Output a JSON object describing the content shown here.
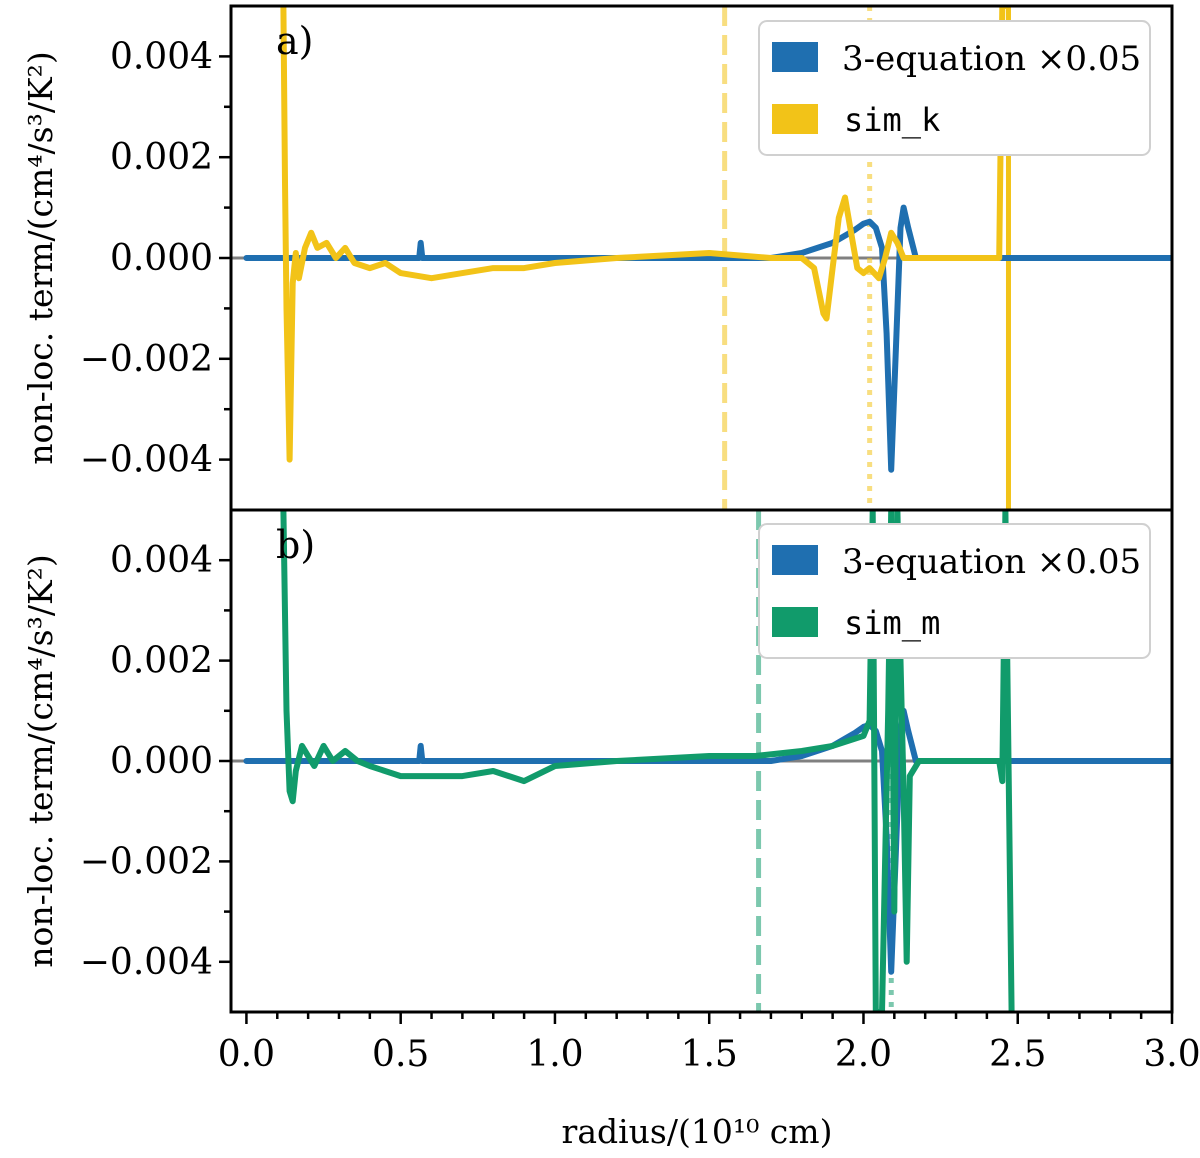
{
  "chart_data": [
    {
      "type": "line",
      "panel_label": "a)",
      "ylabel": "non-loc. term/(cm⁴/s³/K²)",
      "ylim": [
        -0.005,
        0.005
      ],
      "yticks": [
        0.004,
        0.002,
        0.0,
        -0.002,
        -0.004
      ],
      "ytick_labels": [
        "0.004",
        "0.002",
        "0.000",
        "−0.002",
        "−0.004"
      ],
      "xlim": [
        -0.05,
        3.0
      ],
      "legend_position": "top-right",
      "zero_line_color": "#808080",
      "series": [
        {
          "name": "3-equation ×0.05",
          "legend_style": "serif",
          "color": "#1f6fb0",
          "points": [
            [
              0.0,
              0.0
            ],
            [
              0.56,
              0.0
            ],
            [
              0.565,
              0.0003
            ],
            [
              0.57,
              0.0
            ],
            [
              1.7,
              0.0
            ],
            [
              1.8,
              0.0001
            ],
            [
              1.9,
              0.0003
            ],
            [
              1.97,
              0.00055
            ],
            [
              2.0,
              0.00068
            ],
            [
              2.02,
              0.00072
            ],
            [
              2.04,
              0.0006
            ],
            [
              2.06,
              0.0002
            ],
            [
              2.075,
              -0.0015
            ],
            [
              2.09,
              -0.0042
            ],
            [
              2.105,
              -0.0018
            ],
            [
              2.12,
              0.0006
            ],
            [
              2.13,
              0.001
            ],
            [
              2.145,
              0.0006
            ],
            [
              2.17,
              0.0
            ],
            [
              3.0,
              0.0
            ]
          ]
        },
        {
          "name": "sim_k",
          "legend_style": "mono",
          "color": "#f2c318",
          "points": [
            [
              0.12,
              0.005
            ],
            [
              0.125,
              0.0015
            ],
            [
              0.13,
              -0.001
            ],
            [
              0.14,
              -0.004
            ],
            [
              0.15,
              -0.0005
            ],
            [
              0.16,
              0.0001
            ],
            [
              0.17,
              -0.0004
            ],
            [
              0.19,
              0.0002
            ],
            [
              0.21,
              0.0005
            ],
            [
              0.23,
              0.0002
            ],
            [
              0.26,
              0.0003
            ],
            [
              0.29,
              0.0
            ],
            [
              0.32,
              0.0002
            ],
            [
              0.35,
              -0.0001
            ],
            [
              0.4,
              -0.0002
            ],
            [
              0.45,
              -0.0001
            ],
            [
              0.5,
              -0.0003
            ],
            [
              0.6,
              -0.0004
            ],
            [
              0.7,
              -0.0003
            ],
            [
              0.8,
              -0.0002
            ],
            [
              0.9,
              -0.0002
            ],
            [
              1.0,
              -0.0001
            ],
            [
              1.2,
              0.0
            ],
            [
              1.5,
              0.0001
            ],
            [
              1.7,
              0.0
            ],
            [
              1.8,
              0.0
            ],
            [
              1.84,
              -0.0002
            ],
            [
              1.87,
              -0.0011
            ],
            [
              1.88,
              -0.0012
            ],
            [
              1.9,
              -0.0002
            ],
            [
              1.92,
              0.0008
            ],
            [
              1.94,
              0.0012
            ],
            [
              1.96,
              0.0005
            ],
            [
              1.98,
              -0.0002
            ],
            [
              2.0,
              -0.0003
            ],
            [
              2.02,
              -0.0002
            ],
            [
              2.05,
              -0.0004
            ],
            [
              2.07,
              0.0
            ],
            [
              2.09,
              0.0005
            ],
            [
              2.11,
              0.0003
            ],
            [
              2.13,
              0.0
            ],
            [
              2.44,
              0.0
            ],
            [
              2.45,
              0.005
            ],
            [
              2.46,
              0.005
            ]
          ]
        }
      ],
      "vlines": [
        {
          "x": 1.55,
          "style": "dashed",
          "color": "#f2c318"
        },
        {
          "x": 2.02,
          "style": "dotted",
          "color": "#f2c318"
        },
        {
          "x": 2.47,
          "style": "solid",
          "color": "#f2c318"
        }
      ]
    },
    {
      "type": "line",
      "panel_label": "b)",
      "ylabel": "non-loc. term/(cm⁴/s³/K²)",
      "ylim": [
        -0.005,
        0.005
      ],
      "yticks": [
        0.004,
        0.002,
        0.0,
        -0.002,
        -0.004
      ],
      "ytick_labels": [
        "0.004",
        "0.002",
        "0.000",
        "−0.002",
        "−0.004"
      ],
      "xlim": [
        -0.05,
        3.0
      ],
      "xticks": [
        0.0,
        0.5,
        1.0,
        1.5,
        2.0,
        2.5,
        3.0
      ],
      "xtick_labels": [
        "0.0",
        "0.5",
        "1.0",
        "1.5",
        "2.0",
        "2.5",
        "3.0"
      ],
      "xlabel": "radius/(10¹⁰ cm)",
      "legend_position": "top-right",
      "zero_line_color": "#808080",
      "series": [
        {
          "name": "3-equation ×0.05",
          "legend_style": "serif",
          "color": "#1f6fb0",
          "points": [
            [
              0.0,
              0.0
            ],
            [
              0.56,
              0.0
            ],
            [
              0.565,
              0.0003
            ],
            [
              0.57,
              0.0
            ],
            [
              1.7,
              0.0
            ],
            [
              1.8,
              0.0001
            ],
            [
              1.9,
              0.0003
            ],
            [
              1.97,
              0.00055
            ],
            [
              2.0,
              0.00068
            ],
            [
              2.02,
              0.00072
            ],
            [
              2.04,
              0.0006
            ],
            [
              2.06,
              0.0002
            ],
            [
              2.075,
              -0.0015
            ],
            [
              2.09,
              -0.0042
            ],
            [
              2.105,
              -0.0018
            ],
            [
              2.12,
              0.0006
            ],
            [
              2.13,
              0.001
            ],
            [
              2.145,
              0.0006
            ],
            [
              2.17,
              0.0
            ],
            [
              3.0,
              0.0
            ]
          ]
        },
        {
          "name": "sim_m",
          "legend_style": "mono",
          "color": "#119b6b",
          "points": [
            [
              0.12,
              0.005
            ],
            [
              0.13,
              0.001
            ],
            [
              0.14,
              -0.0006
            ],
            [
              0.15,
              -0.0008
            ],
            [
              0.16,
              -0.0002
            ],
            [
              0.18,
              0.0003
            ],
            [
              0.2,
              0.0001
            ],
            [
              0.22,
              -0.0001
            ],
            [
              0.25,
              0.0003
            ],
            [
              0.28,
              0.0
            ],
            [
              0.32,
              0.0002
            ],
            [
              0.36,
              0.0
            ],
            [
              0.4,
              -0.0001
            ],
            [
              0.5,
              -0.0003
            ],
            [
              0.6,
              -0.0003
            ],
            [
              0.7,
              -0.0003
            ],
            [
              0.8,
              -0.0002
            ],
            [
              0.9,
              -0.0004
            ],
            [
              1.0,
              -0.0001
            ],
            [
              1.2,
              0.0
            ],
            [
              1.5,
              0.0001
            ],
            [
              1.65,
              0.0001
            ],
            [
              1.8,
              0.0002
            ],
            [
              1.9,
              0.0003
            ],
            [
              2.0,
              0.0005
            ],
            [
              2.02,
              0.0008
            ],
            [
              2.03,
              0.005
            ],
            [
              2.035,
              0.0
            ],
            [
              2.04,
              -0.005
            ],
            [
              2.06,
              -0.005
            ],
            [
              2.08,
              0.001
            ],
            [
              2.09,
              0.005
            ],
            [
              2.1,
              -0.003
            ],
            [
              2.11,
              0.005
            ],
            [
              2.12,
              0.002
            ],
            [
              2.13,
              -0.0006
            ],
            [
              2.14,
              -0.004
            ],
            [
              2.15,
              -0.0003
            ],
            [
              2.18,
              0.0
            ],
            [
              2.44,
              0.0
            ],
            [
              2.45,
              -0.0004
            ],
            [
              2.46,
              0.005
            ],
            [
              2.47,
              0.0
            ],
            [
              2.48,
              -0.005
            ]
          ]
        }
      ],
      "vlines": [
        {
          "x": 1.66,
          "style": "dashed",
          "color": "#119b6b"
        },
        {
          "x": 2.09,
          "style": "dotted",
          "color": "#119b6b"
        }
      ]
    }
  ]
}
